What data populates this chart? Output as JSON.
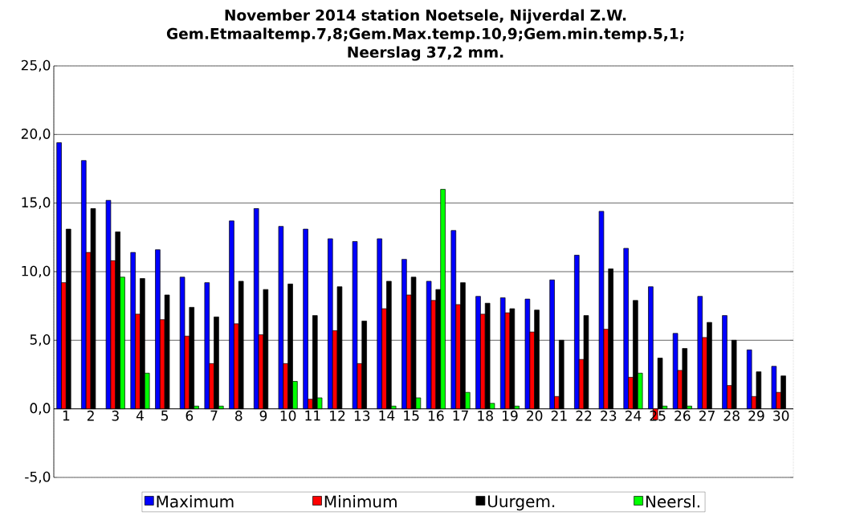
{
  "chart_data": {
    "type": "bar",
    "title": "November 2014 station Noetsele, Nijverdal Z.W. Gem.Etmaaltemp.7,8;Gem.Max.temp.10,9;Gem.min.temp.5,1; Neerslag 37,2 mm.",
    "categories": [
      "1",
      "2",
      "3",
      "4",
      "5",
      "6",
      "7",
      "8",
      "9",
      "10",
      "11",
      "12",
      "13",
      "14",
      "15",
      "16",
      "17",
      "18",
      "19",
      "20",
      "21",
      "22",
      "23",
      "24",
      "25",
      "26",
      "27",
      "28",
      "29",
      "30"
    ],
    "series": [
      {
        "name": "Maximum",
        "color": "#0000ff",
        "values": [
          19.4,
          18.1,
          15.2,
          11.4,
          11.6,
          9.6,
          9.2,
          13.7,
          14.6,
          13.3,
          13.1,
          12.4,
          12.2,
          12.4,
          10.9,
          9.3,
          13.0,
          8.2,
          8.1,
          8.0,
          9.4,
          11.2,
          14.4,
          11.7,
          8.9,
          5.5,
          8.2,
          6.8,
          4.3,
          3.1
        ]
      },
      {
        "name": "Minimum",
        "color": "#ff0000",
        "values": [
          9.2,
          11.4,
          10.8,
          6.9,
          6.5,
          5.3,
          3.3,
          6.2,
          5.4,
          3.3,
          0.7,
          5.7,
          3.3,
          7.3,
          8.3,
          7.9,
          7.6,
          6.9,
          7.0,
          5.6,
          0.9,
          3.6,
          5.8,
          2.3,
          -0.8,
          2.8,
          5.2,
          1.7,
          0.9,
          1.2
        ]
      },
      {
        "name": "Uurgem.",
        "color": "#000000",
        "values": [
          13.1,
          14.6,
          12.9,
          9.5,
          8.3,
          7.4,
          6.7,
          9.3,
          8.7,
          9.1,
          6.8,
          8.9,
          6.4,
          9.3,
          9.6,
          8.7,
          9.2,
          7.7,
          7.3,
          7.2,
          5.0,
          6.8,
          10.2,
          7.9,
          3.7,
          4.4,
          6.3,
          5.0,
          2.7,
          2.4
        ]
      },
      {
        "name": "Neersl.",
        "color": "#00ff00",
        "values": [
          0,
          0,
          9.6,
          2.6,
          0,
          0.2,
          0.2,
          0,
          0,
          2.0,
          0.8,
          0,
          0,
          0.2,
          0.8,
          16.0,
          1.2,
          0.4,
          0.2,
          0,
          0,
          0,
          0,
          2.6,
          0.2,
          0.2,
          0,
          0,
          0,
          0
        ]
      }
    ],
    "ylim": [
      -5,
      25
    ],
    "yticks": [
      {
        "value": -5,
        "label": "-5,0"
      },
      {
        "value": 0,
        "label": "0,0"
      },
      {
        "value": 5,
        "label": "5,0"
      },
      {
        "value": 10,
        "label": "10,0"
      },
      {
        "value": 15,
        "label": "15,0"
      },
      {
        "value": 20,
        "label": "20,0"
      },
      {
        "value": 25,
        "label": "25,0"
      }
    ],
    "grid": "y",
    "legend": "bottom"
  }
}
